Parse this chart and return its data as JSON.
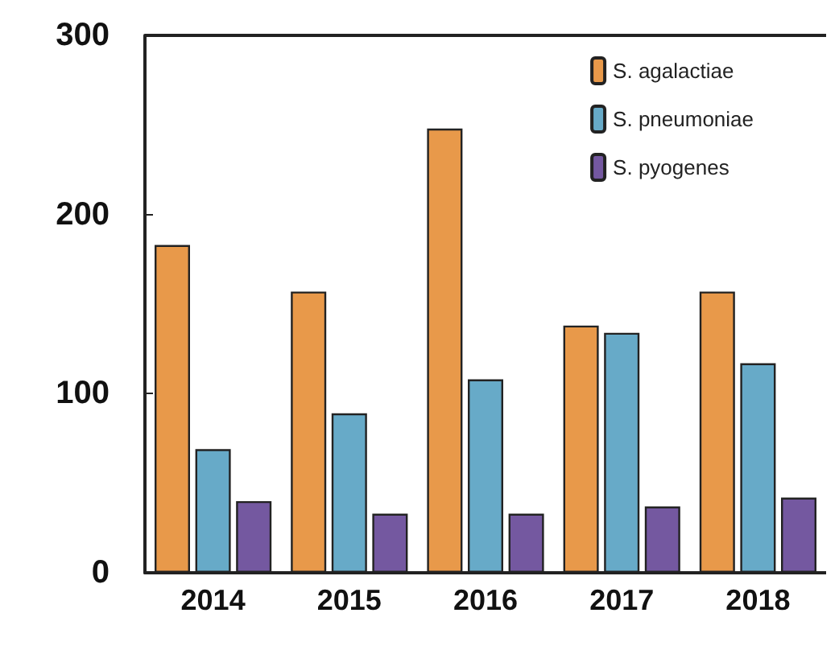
{
  "chart_data": {
    "type": "bar",
    "categories": [
      "2014",
      "2015",
      "2016",
      "2017",
      "2018"
    ],
    "series": [
      {
        "name": "S. agalactiae",
        "color": "#e8994a",
        "values": [
          183,
          157,
          248,
          138,
          157
        ]
      },
      {
        "name": "S. pneumoniae",
        "color": "#67aac8",
        "values": [
          69,
          89,
          108,
          134,
          117
        ]
      },
      {
        "name": "S. pyogenes",
        "color": "#7458a0",
        "values": [
          40,
          33,
          33,
          37,
          42
        ]
      }
    ],
    "ylim": [
      0,
      300
    ],
    "yticks": [
      0,
      100,
      200,
      300
    ],
    "grid": false,
    "legend": "top right"
  }
}
